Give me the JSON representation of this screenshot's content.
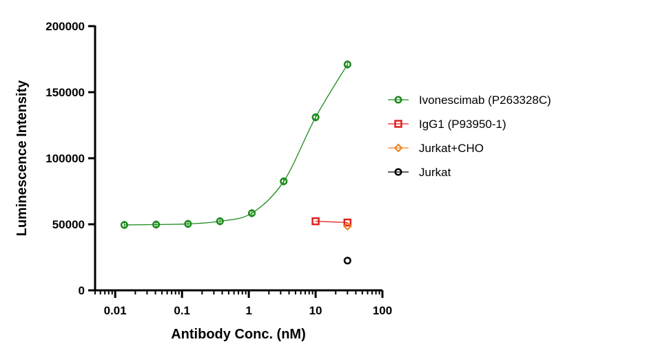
{
  "chart_data": {
    "type": "scatter",
    "xlabel": "Antibody Conc. (nM)",
    "ylabel": "Luminescence Intensity",
    "xscale": "log",
    "xlim": [
      0.005,
      100
    ],
    "ylim": [
      0,
      200000
    ],
    "x_ticks": [
      0.01,
      0.1,
      1,
      10,
      100
    ],
    "x_tick_labels": [
      "0.01",
      "0.1",
      "1",
      "10",
      "100"
    ],
    "y_ticks": [
      0,
      50000,
      100000,
      150000,
      200000
    ],
    "y_tick_labels": [
      "0",
      "50000",
      "100000",
      "150000",
      "200000"
    ],
    "legend_position": "right",
    "grid": false,
    "series": [
      {
        "name": "Ivonescimab (P263328C)",
        "color": "#1a8a1a",
        "marker": "circle",
        "fit_curve": true,
        "x": [
          0.0137,
          0.041,
          0.123,
          0.37,
          1.11,
          3.33,
          10,
          30
        ],
        "y": [
          49500,
          49800,
          50300,
          52300,
          58400,
          82500,
          131000,
          171000
        ]
      },
      {
        "name": "IgG1 (P93950-1)",
        "color": "#e02020",
        "marker": "square",
        "fit_curve": false,
        "x": [
          10,
          30
        ],
        "y": [
          52300,
          51300
        ]
      },
      {
        "name": "Jurkat+CHO",
        "color": "#f08020",
        "marker": "diamond",
        "fit_curve": false,
        "x": [
          30
        ],
        "y": [
          48500
        ]
      },
      {
        "name": "Jurkat",
        "color": "#000000",
        "marker": "circle",
        "fit_curve": false,
        "x": [
          30
        ],
        "y": [
          22500
        ]
      }
    ]
  }
}
